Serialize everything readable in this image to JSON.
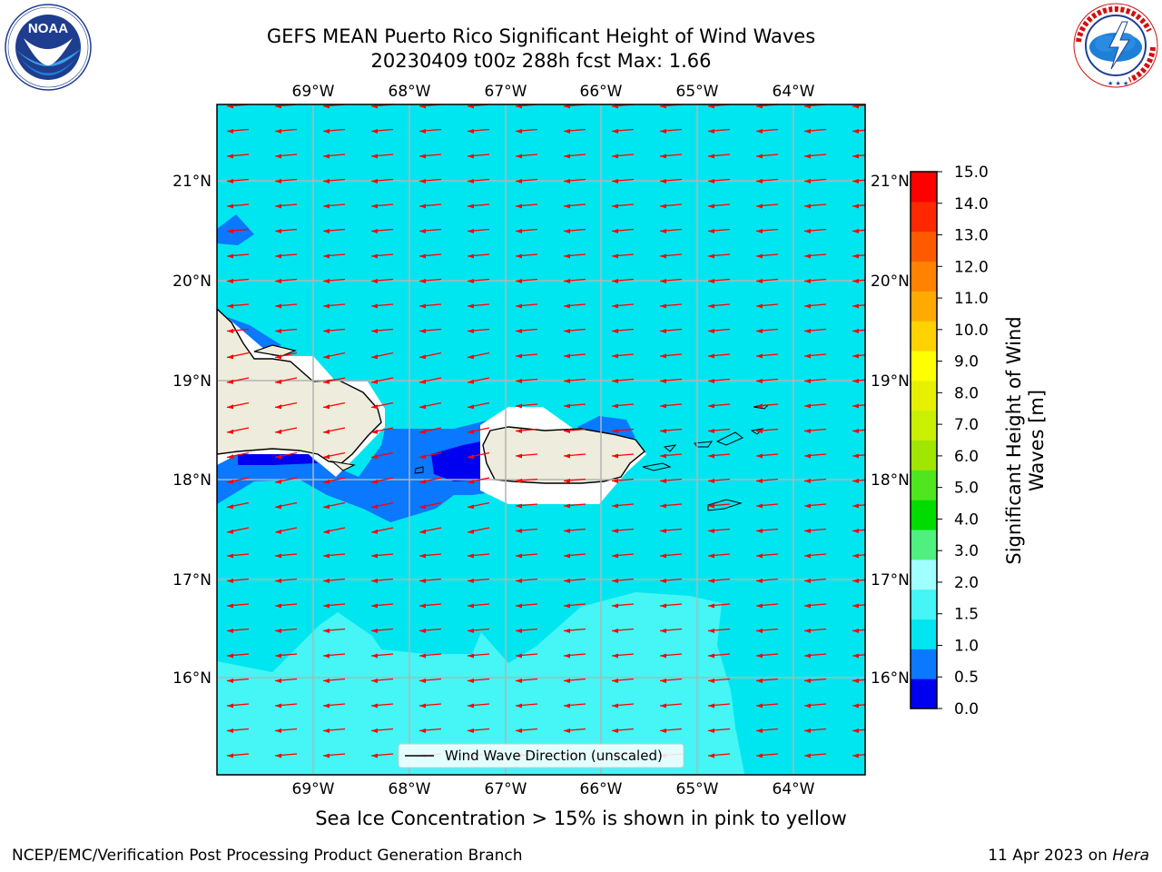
{
  "title": {
    "line1": "GEFS MEAN Puerto Rico Significant Height of Wind Waves",
    "line2": "20230409 t00z 288h fcst   Max: 1.66"
  },
  "axes": {
    "lon_labels": [
      "69°W",
      "68°W",
      "67°W",
      "66°W",
      "65°W",
      "64°W"
    ],
    "lat_labels": [
      "21°N",
      "20°N",
      "19°N",
      "18°N",
      "17°N",
      "16°N"
    ]
  },
  "legend": {
    "label": "Wind Wave Direction (unscaled)"
  },
  "colorbar": {
    "label": "Significant Height of Wind Waves [m]",
    "label_line1": "Significant Height of Wind",
    "label_line2": "Waves [m]",
    "ticks": [
      "0.0",
      "0.5",
      "1.0",
      "1.5",
      "2.0",
      "3.0",
      "4.0",
      "5.0",
      "6.0",
      "7.0",
      "8.0",
      "9.0",
      "10.0",
      "11.0",
      "12.0",
      "13.0",
      "14.0",
      "15.0"
    ],
    "colors": [
      "#0000f0",
      "#0a78ff",
      "#00e6f0",
      "#46f5f5",
      "#a0ffff",
      "#50f080",
      "#00dc00",
      "#50e61e",
      "#a0e600",
      "#c8f000",
      "#e6f000",
      "#ffff00",
      "#ffd200",
      "#ffaa00",
      "#ff8200",
      "#ff5a00",
      "#ff2800",
      "#ff0000"
    ]
  },
  "caption": "Sea Ice Concentration > 15% is shown in pink to yellow",
  "footer": {
    "left": "NCEP/EMC/Verification Post Processing Product Generation Branch",
    "right_date": "11 Apr 2023 on ",
    "right_host": "Hera"
  },
  "logos": {
    "left": {
      "text": "NOAA",
      "ring_text": "NATIONAL OCEANIC AND ATMOSPHERIC ADMINISTRATION · U.S. DEPARTMENT OF COMMERCE"
    },
    "right": {
      "ring_text": "NATIONAL WEATHER SERVICE"
    }
  },
  "colors": {
    "land": "#eeecdc",
    "arrow": "#ff0000",
    "grid": "#b4b4b4"
  }
}
